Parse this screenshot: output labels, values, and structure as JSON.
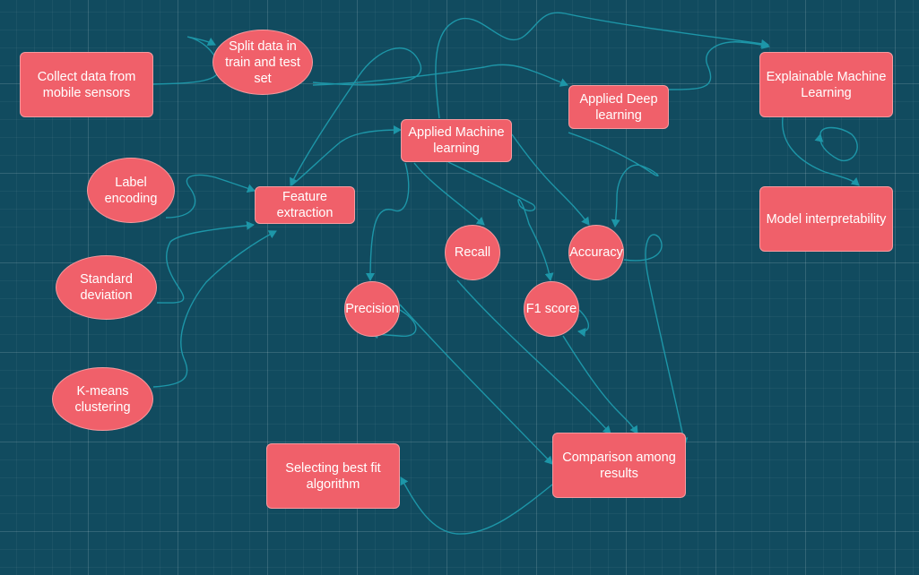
{
  "diagram": {
    "colors": {
      "background": "#114b5f",
      "node_fill": "#f0606a",
      "node_border": "#f79a9f",
      "node_text": "#ffffff",
      "connector": "#1d96a8"
    },
    "nodes": {
      "collect": "Collect data from\nmobile sensors",
      "split": "Split data in\ntrain and test\nset",
      "label_encoding": "Label\nencoding",
      "standard_deviation": "Standard\ndeviation",
      "kmeans": "K-means\nclustering",
      "feature_extraction": "Feature\nextraction",
      "applied_ml": "Applied Machine\nlearning",
      "applied_dl": "Applied Deep\nlearning",
      "explainable_ml": "Explainable Machine\nLearning",
      "model_interpretability": "Model interpretability",
      "recall": "Recall",
      "accuracy": "Accuracy",
      "precision": "Precision",
      "f1_score": "F1 score",
      "comparison": "Comparison among\nresults",
      "selecting": "Selecting best fit\nalgorithm"
    }
  }
}
